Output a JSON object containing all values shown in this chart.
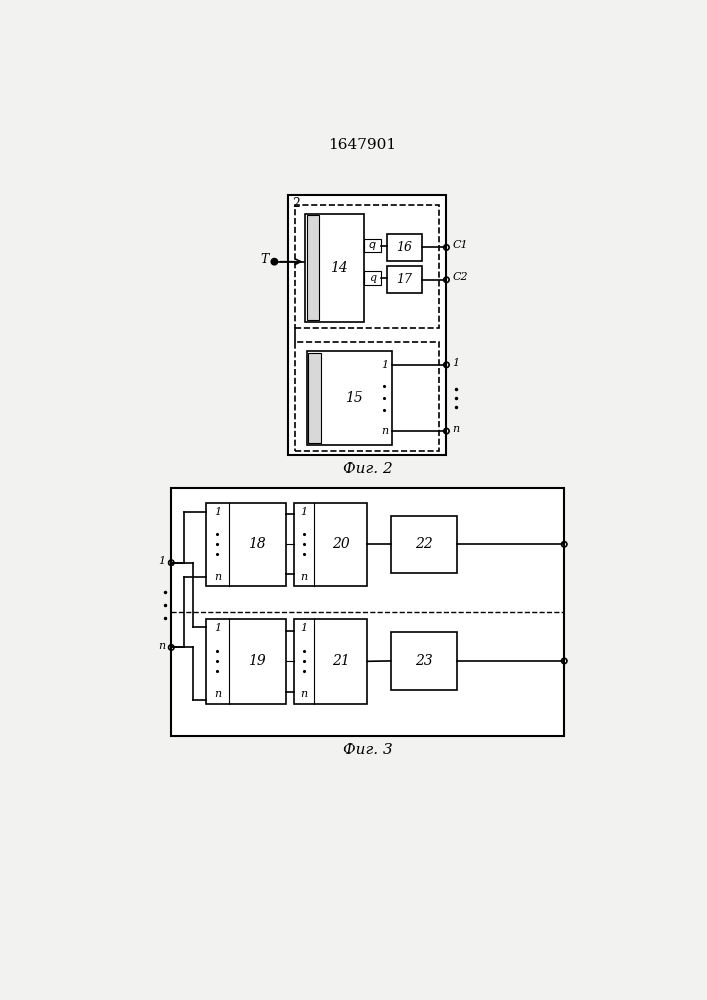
{
  "title": "1647901",
  "fig2_label": "Фиг. 2",
  "fig3_label": "Фиг. 3",
  "bg_color": "#f2f2f0",
  "line_color": "#000000"
}
